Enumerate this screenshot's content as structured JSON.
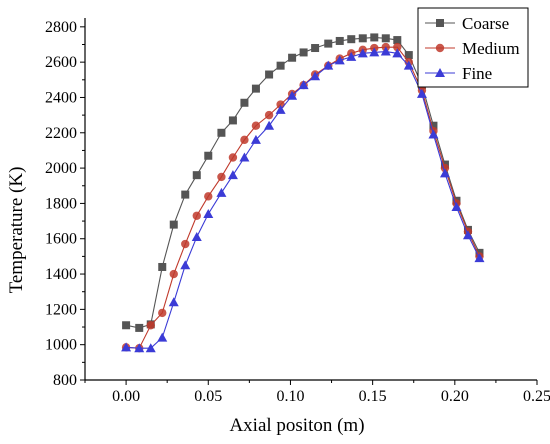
{
  "chart_data": {
    "type": "line",
    "xlabel": "Axial positon (m)",
    "ylabel": "Temperature (K)",
    "xlim": [
      -0.025,
      0.25
    ],
    "ylim": [
      800,
      2850
    ],
    "x_ticks": [
      "0.00",
      "0.05",
      "0.10",
      "0.15",
      "0.20",
      "0.25"
    ],
    "x_tick_values": [
      0.0,
      0.05,
      0.1,
      0.15,
      0.2,
      0.25
    ],
    "y_ticks": [
      "800",
      "1000",
      "1200",
      "1400",
      "1600",
      "1800",
      "2000",
      "2200",
      "2400",
      "2600",
      "2800"
    ],
    "y_tick_values": [
      800,
      1000,
      1200,
      1400,
      1600,
      1800,
      2000,
      2200,
      2400,
      2600,
      2800
    ],
    "legend_position": "top-right",
    "series": [
      {
        "name": "Coarse",
        "color": "#555555",
        "marker": "square",
        "x": [
          0.0,
          0.008,
          0.015,
          0.022,
          0.029,
          0.036,
          0.043,
          0.05,
          0.058,
          0.065,
          0.072,
          0.079,
          0.087,
          0.094,
          0.101,
          0.108,
          0.115,
          0.123,
          0.13,
          0.137,
          0.144,
          0.151,
          0.158,
          0.165,
          0.172,
          0.18,
          0.187,
          0.194,
          0.201,
          0.208,
          0.215
        ],
        "y": [
          1110,
          1095,
          1115,
          1440,
          1680,
          1850,
          1960,
          2070,
          2200,
          2270,
          2370,
          2450,
          2530,
          2580,
          2625,
          2655,
          2680,
          2705,
          2720,
          2730,
          2735,
          2740,
          2735,
          2725,
          2640,
          2470,
          2240,
          2020,
          1815,
          1650,
          1520
        ]
      },
      {
        "name": "Medium",
        "color": "#c0392b",
        "marker": "circle",
        "x": [
          0.0,
          0.008,
          0.015,
          0.022,
          0.029,
          0.036,
          0.043,
          0.05,
          0.058,
          0.065,
          0.072,
          0.079,
          0.087,
          0.094,
          0.101,
          0.108,
          0.115,
          0.123,
          0.13,
          0.137,
          0.144,
          0.151,
          0.158,
          0.165,
          0.172,
          0.18,
          0.187,
          0.194,
          0.201,
          0.208,
          0.215
        ],
        "y": [
          985,
          980,
          1110,
          1180,
          1400,
          1570,
          1730,
          1840,
          1950,
          2060,
          2160,
          2240,
          2300,
          2360,
          2420,
          2470,
          2530,
          2580,
          2620,
          2650,
          2670,
          2680,
          2685,
          2685,
          2600,
          2440,
          2210,
          2000,
          1800,
          1640,
          1500
        ]
      },
      {
        "name": "Fine",
        "color": "#3b3bd6",
        "marker": "triangle",
        "x": [
          0.0,
          0.008,
          0.015,
          0.022,
          0.029,
          0.036,
          0.043,
          0.05,
          0.058,
          0.065,
          0.072,
          0.079,
          0.087,
          0.094,
          0.101,
          0.108,
          0.115,
          0.123,
          0.13,
          0.137,
          0.144,
          0.151,
          0.158,
          0.165,
          0.172,
          0.18,
          0.187,
          0.194,
          0.201,
          0.208,
          0.215
        ],
        "y": [
          985,
          980,
          980,
          1040,
          1240,
          1450,
          1610,
          1740,
          1860,
          1960,
          2060,
          2160,
          2240,
          2330,
          2410,
          2470,
          2520,
          2580,
          2610,
          2630,
          2650,
          2655,
          2660,
          2650,
          2580,
          2420,
          2190,
          1970,
          1780,
          1620,
          1490
        ]
      }
    ]
  }
}
